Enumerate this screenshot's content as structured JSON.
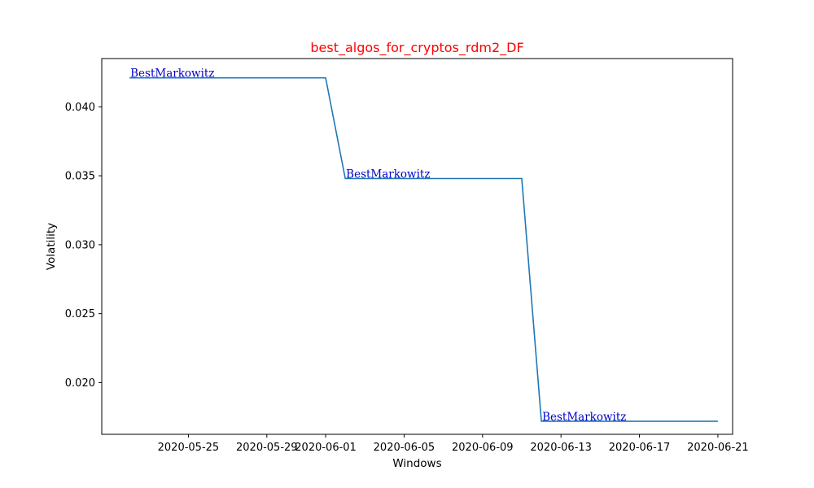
{
  "chart_data": {
    "type": "line",
    "title": "best_algos_for_cryptos_rdm2_DF",
    "title_color": "#ff0000",
    "xlabel": "Windows",
    "ylabel": "Volatility",
    "x_type": "date",
    "xlim": [
      "2020-05-20T14:00",
      "2020-06-21T18:00"
    ],
    "ylim": [
      0.01625,
      0.0435
    ],
    "x_ticks": [
      "2020-05-25",
      "2020-05-29",
      "2020-06-01",
      "2020-06-05",
      "2020-06-09",
      "2020-06-13",
      "2020-06-17",
      "2020-06-21"
    ],
    "y_ticks": [
      0.02,
      0.025,
      0.03,
      0.035,
      0.04
    ],
    "y_tick_labels": [
      "0.020",
      "0.025",
      "0.030",
      "0.035",
      "0.040"
    ],
    "grid": false,
    "series": [
      {
        "color": "#1f77b4",
        "points": [
          {
            "x": "2020-05-22",
            "y": 0.0421
          },
          {
            "x": "2020-06-01",
            "y": 0.0421
          },
          {
            "x": "2020-06-02",
            "y": 0.0348
          },
          {
            "x": "2020-06-11",
            "y": 0.0348
          },
          {
            "x": "2020-06-12",
            "y": 0.0172
          },
          {
            "x": "2020-06-21",
            "y": 0.0172
          }
        ]
      }
    ],
    "annotations": [
      {
        "text": "BestMarkowitz",
        "x": "2020-05-22",
        "y": 0.0421,
        "color": "#0000cc"
      },
      {
        "text": "BestMarkowitz",
        "x": "2020-06-02",
        "y": 0.0348,
        "color": "#0000cc"
      },
      {
        "text": "BestMarkowitz",
        "x": "2020-06-12",
        "y": 0.0172,
        "color": "#0000cc"
      }
    ]
  }
}
